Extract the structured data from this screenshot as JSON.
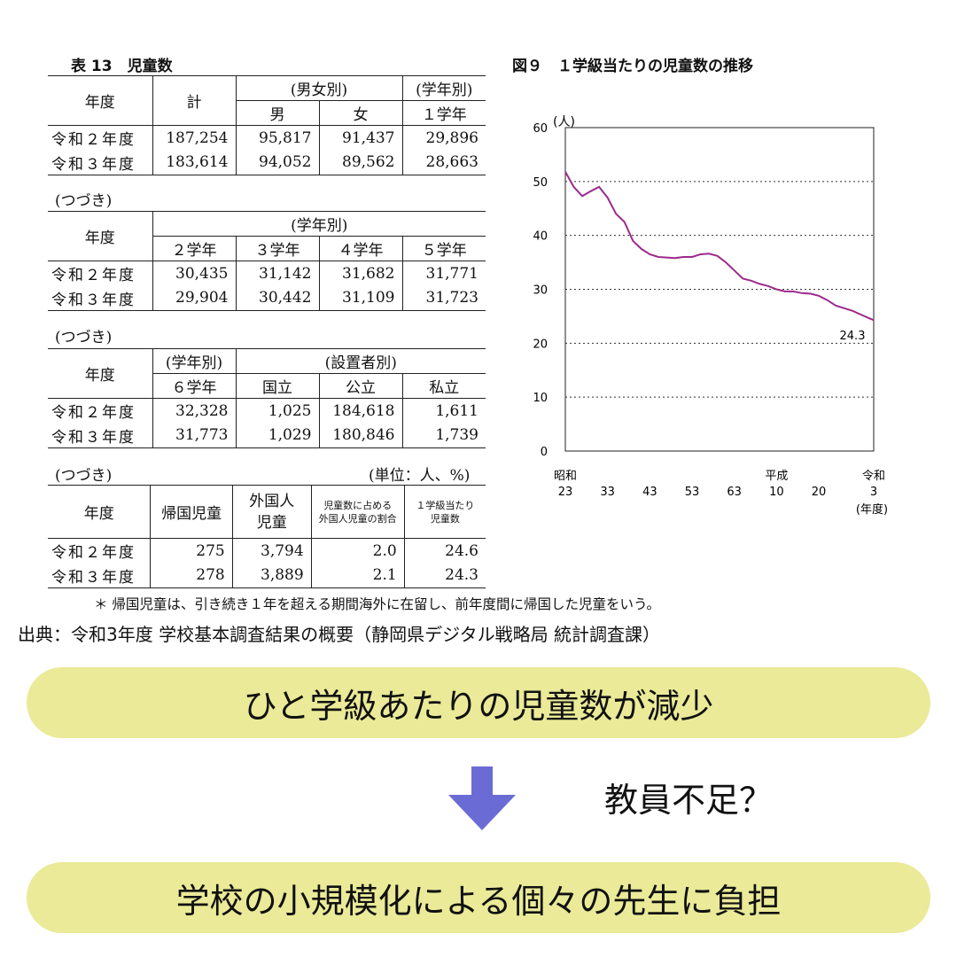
{
  "table": {
    "title": "表 13　児童数",
    "continued": "(つづき)",
    "unit": "(単位：人、%)",
    "year_header": "年度",
    "rows_years": [
      "令和２年度",
      "令和３年度"
    ],
    "block1": {
      "total": "計",
      "gender_group": "(男女別)",
      "grade_group": "(学年別)",
      "male": "男",
      "female": "女",
      "g1": "１学年",
      "values": [
        [
          "187,254",
          "95,817",
          "91,437",
          "29,896"
        ],
        [
          "183,614",
          "94,052",
          "89,562",
          "28,663"
        ]
      ]
    },
    "block2": {
      "grade_group": "(学年別)",
      "cols": [
        "２学年",
        "３学年",
        "４学年",
        "５学年"
      ],
      "values": [
        [
          "30,435",
          "31,142",
          "31,682",
          "31,771"
        ],
        [
          "29,904",
          "30,442",
          "31,109",
          "31,723"
        ]
      ]
    },
    "block3": {
      "grade_group": "(学年別)",
      "founder_group": "(設置者別)",
      "cols": [
        "６学年",
        "国立",
        "公立",
        "私立"
      ],
      "values": [
        [
          "32,328",
          "1,025",
          "184,618",
          "1,611"
        ],
        [
          "31,773",
          "1,029",
          "180,846",
          "1,739"
        ]
      ]
    },
    "block4": {
      "returnee": "帰国児童",
      "foreign_1": "外国人",
      "foreign_2": "児童",
      "ratio_1": "児童数に占める",
      "ratio_2": "外国人児童の割合",
      "per_class_1": "１学級当たり",
      "per_class_2": "児童数",
      "values": [
        [
          "275",
          "3,794",
          "2.0",
          "24.6"
        ],
        [
          "278",
          "3,889",
          "2.1",
          "24.3"
        ]
      ]
    },
    "footnote": "＊ 帰国児童は、引き続き１年を超える期間海外に在留し、前年度間に帰国した児童をいう。"
  },
  "chart": {
    "title": "図９　１学級当たりの児童数の推移",
    "y_unit": "(人)",
    "x_unit": "(年度)",
    "last_value_label": "24.3",
    "line_color": "#9c2a8c",
    "y_ticks": [
      "0",
      "10",
      "20",
      "30",
      "40",
      "50",
      "60"
    ],
    "x_ticks": [
      {
        "era": "昭和",
        "year": "23"
      },
      {
        "era": "",
        "year": "33"
      },
      {
        "era": "",
        "year": "43"
      },
      {
        "era": "",
        "year": "53"
      },
      {
        "era": "",
        "year": "63"
      },
      {
        "era": "平成",
        "year": "10"
      },
      {
        "era": "",
        "year": "20"
      },
      {
        "era": "令和",
        "year": "3"
      }
    ]
  },
  "chart_data": {
    "type": "line",
    "title": "図９　１学級当たりの児童数の推移",
    "ylabel": "(人)",
    "xlabel": "(年度)",
    "ylim": [
      0,
      60
    ],
    "x": [
      1948,
      1950,
      1952,
      1954,
      1956,
      1958,
      1960,
      1962,
      1964,
      1966,
      1968,
      1970,
      1972,
      1974,
      1976,
      1978,
      1980,
      1982,
      1984,
      1986,
      1988,
      1990,
      1992,
      1994,
      1996,
      1998,
      2000,
      2002,
      2004,
      2006,
      2008,
      2010,
      2012,
      2014,
      2016,
      2018,
      2020,
      2021
    ],
    "series": [
      {
        "values": [
          51.8,
          49.0,
          47.3,
          48.2,
          49.0,
          47.0,
          44.0,
          42.5,
          39.0,
          37.5,
          36.5,
          36.0,
          35.9,
          35.8,
          36.0,
          36.0,
          36.5,
          36.6,
          36.2,
          35.0,
          33.5,
          32.0,
          31.6,
          31.0,
          30.6,
          30.0,
          29.6,
          29.6,
          29.3,
          29.2,
          28.8,
          28.0,
          27.0,
          26.5,
          26.0,
          25.3,
          24.6,
          24.3
        ]
      }
    ]
  },
  "source": "出典：令和3年度 学校基本調査結果の概要（静岡県デジタル戦略局 統計調査課）",
  "pill1": "ひと学級あたりの児童数が減少",
  "question": "教員不足？",
  "pill2": "学校の小規模化による個々の先生に負担",
  "arrow_color": "#6b6bd6"
}
